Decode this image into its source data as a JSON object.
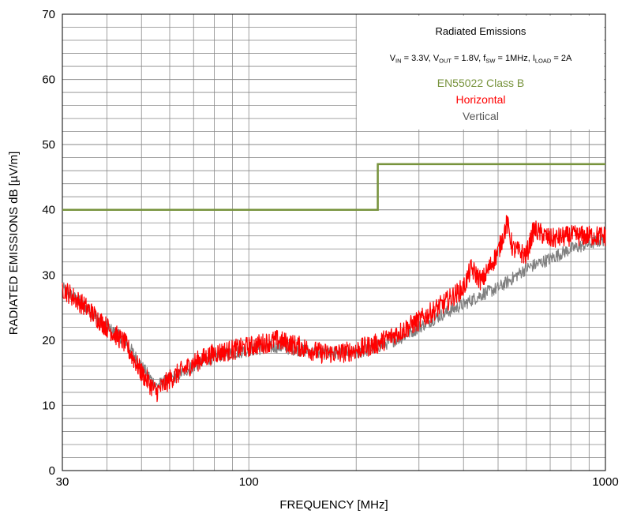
{
  "chart_data": {
    "type": "line",
    "title": "Radiated Emissions",
    "subtitle": {
      "vin_main": "V",
      "vin_sub": "IN",
      "vin_val": " = 3.3V, ",
      "vout_main": "V",
      "vout_sub": "OUT",
      "vout_val": " = 1.8V, ",
      "fsw_main": "f",
      "fsw_sub": "SW",
      "fsw_val": " = 1MHz, ",
      "iload_main": "I",
      "iload_sub": "LOAD",
      "iload_val": " = 2A"
    },
    "xlabel": "FREQUENCY [MHz]",
    "ylabel": "RADIATED EMISSIONS dB [µV/m]",
    "x_scale": "log",
    "xlim": [
      30,
      1000
    ],
    "ylim": [
      0,
      70
    ],
    "x_tick_labels": [
      "30",
      "100",
      "1000"
    ],
    "x_tick_values": [
      30,
      100,
      1000
    ],
    "y_tick_labels": [
      "0",
      "10",
      "20",
      "30",
      "40",
      "50",
      "60",
      "70"
    ],
    "y_tick_values": [
      0,
      10,
      20,
      30,
      40,
      50,
      60,
      70
    ],
    "grid": true,
    "legend_position": "top-right",
    "series": [
      {
        "name": "EN55022 Class B",
        "color": "#77933c",
        "x": [
          30,
          230,
          230,
          1000
        ],
        "y": [
          40,
          40,
          47,
          47
        ]
      },
      {
        "name": "Vertical",
        "color": "#808080",
        "x": [
          30,
          35,
          40,
          45,
          50,
          55,
          60,
          70,
          80,
          100,
          120,
          140,
          160,
          180,
          200,
          230,
          270,
          300,
          350,
          400,
          450,
          500,
          550,
          600,
          700,
          800,
          1000
        ],
        "y": [
          28,
          25,
          22,
          20,
          16,
          13,
          14,
          16,
          17.5,
          18.5,
          19,
          18.5,
          18,
          18,
          18,
          19,
          20.5,
          22,
          24,
          25.5,
          27,
          28,
          29.5,
          31,
          32.5,
          34,
          35.5
        ]
      },
      {
        "name": "Horizontal",
        "color": "#ff0000",
        "x": [
          30,
          35,
          40,
          45,
          50,
          55,
          60,
          70,
          80,
          90,
          100,
          120,
          140,
          160,
          180,
          200,
          230,
          270,
          300,
          350,
          400,
          420,
          450,
          500,
          530,
          550,
          600,
          630,
          700,
          800,
          1000
        ],
        "y": [
          28,
          25,
          22,
          19.5,
          15,
          12,
          14,
          16.5,
          18,
          18.5,
          19,
          20,
          19,
          18,
          18,
          18.5,
          19.5,
          21.5,
          23,
          25.5,
          28,
          31,
          29,
          33.5,
          38,
          34,
          33,
          37,
          35.5,
          36,
          36
        ]
      }
    ]
  }
}
